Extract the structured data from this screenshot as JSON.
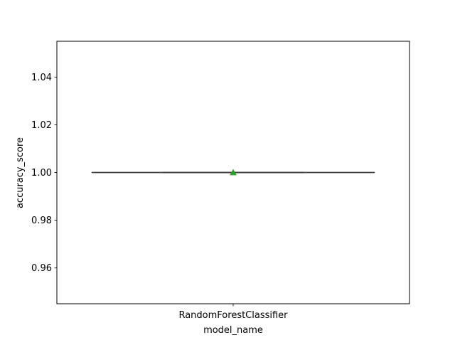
{
  "chart_data": {
    "type": "box",
    "categories": [
      "RandomForestClassifier"
    ],
    "series": [
      {
        "values": [
          1.0
        ],
        "box": {
          "min": 1.0,
          "q1": 1.0,
          "median": 1.0,
          "q3": 1.0,
          "max": 1.0
        },
        "mean": 1.0
      }
    ],
    "xlabel": "model_name",
    "ylabel": "accuracy_score",
    "ylim": [
      0.945,
      1.055
    ],
    "yticks": [
      0.96,
      0.98,
      1.0,
      1.02,
      1.04
    ],
    "ytick_labels": [
      "0.96",
      "0.98",
      "1.00",
      "1.02",
      "1.04"
    ],
    "grid": false,
    "colors": {
      "box_line": "#3f3f3f",
      "mean_marker": "#2ca02c",
      "axes": "#000000"
    }
  }
}
